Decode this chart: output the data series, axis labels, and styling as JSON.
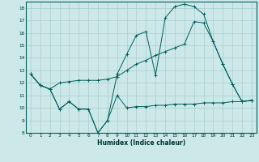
{
  "title": "",
  "xlabel": "Humidex (Indice chaleur)",
  "ylabel": "",
  "xlim": [
    -0.5,
    23.5
  ],
  "ylim": [
    8,
    18.5
  ],
  "yticks": [
    8,
    9,
    10,
    11,
    12,
    13,
    14,
    15,
    16,
    17,
    18
  ],
  "xticks": [
    0,
    1,
    2,
    3,
    4,
    5,
    6,
    7,
    8,
    9,
    10,
    11,
    12,
    13,
    14,
    15,
    16,
    17,
    18,
    19,
    20,
    21,
    22,
    23
  ],
  "background_color": "#cce8e8",
  "grid_color": "#aacccc",
  "line_color": "#005f5f",
  "line1_x": [
    0,
    1,
    2,
    3,
    4,
    5,
    6,
    7,
    8,
    9,
    10,
    11,
    12,
    13,
    14,
    15,
    16,
    17,
    18,
    19,
    20,
    21,
    22,
    23
  ],
  "line1_y": [
    12.7,
    11.8,
    11.5,
    9.9,
    10.5,
    9.9,
    9.9,
    8.0,
    9.0,
    11.0,
    10.0,
    10.1,
    10.1,
    10.2,
    10.2,
    10.3,
    10.3,
    10.3,
    10.4,
    10.4,
    10.4,
    10.5,
    10.5,
    10.6
  ],
  "line2_x": [
    0,
    1,
    2,
    3,
    4,
    5,
    6,
    7,
    8,
    9,
    10,
    11,
    12,
    13,
    14,
    15,
    16,
    17,
    18,
    19,
    20,
    21,
    22,
    23
  ],
  "line2_y": [
    12.7,
    11.8,
    11.5,
    9.9,
    10.5,
    9.9,
    9.9,
    8.0,
    9.0,
    12.7,
    14.3,
    15.8,
    16.1,
    12.6,
    17.2,
    18.1,
    18.3,
    18.1,
    17.5,
    15.3,
    13.5,
    11.9,
    10.5,
    10.6
  ],
  "line3_x": [
    0,
    1,
    2,
    3,
    4,
    5,
    6,
    7,
    8,
    9,
    10,
    11,
    12,
    13,
    14,
    15,
    16,
    17,
    18,
    19,
    20,
    21,
    22,
    23
  ],
  "line3_y": [
    12.7,
    11.8,
    11.5,
    12.0,
    12.1,
    12.2,
    12.2,
    12.2,
    12.3,
    12.5,
    13.0,
    13.5,
    13.8,
    14.2,
    14.5,
    14.8,
    15.1,
    16.9,
    16.8,
    15.3,
    13.5,
    11.9,
    10.5,
    10.6
  ],
  "tick_fontsize": 4.2,
  "xlabel_fontsize": 5.5,
  "lw": 0.7,
  "marker_size": 2.5
}
